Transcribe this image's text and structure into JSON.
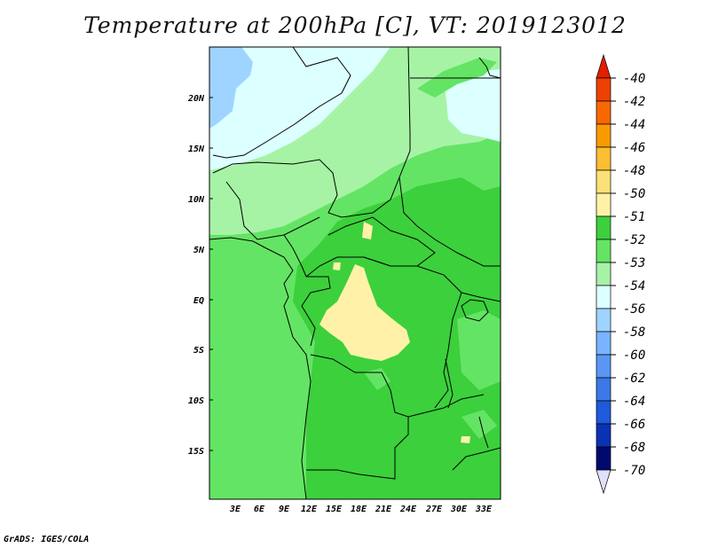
{
  "title": "Temperature at 200hPa [C], VT: 2019123012",
  "credit": "GrADS: IGES/COLA",
  "map": {
    "lat_labels": [
      "20N",
      "15N",
      "10N",
      "5N",
      "EQ",
      "5S",
      "10S",
      "15S"
    ],
    "lon_labels": [
      "3E",
      "6E",
      "9E",
      "12E",
      "15E",
      "18E",
      "21E",
      "24E",
      "27E",
      "30E",
      "33E"
    ],
    "colors": {
      "c52": "#3cd03c",
      "c53": "#64e464",
      "c54": "#a6f3a6",
      "c56": "#dcffff",
      "c58": "#9ed4ff",
      "c51": "#fff2a8",
      "boundary": "#000000"
    }
  },
  "colorbar": {
    "labels": [
      "-40",
      "-42",
      "-44",
      "-46",
      "-48",
      "-50",
      "-51",
      "-52",
      "-53",
      "-54",
      "-56",
      "-58",
      "-60",
      "-62",
      "-64",
      "-66",
      "-68",
      "-70"
    ],
    "colors": [
      "#e41e00",
      "#ee4000",
      "#f86800",
      "#fa9a00",
      "#fcbe32",
      "#fce078",
      "#fff2a8",
      "#3cd03c",
      "#64e464",
      "#a6f3a6",
      "#dcffff",
      "#9ed4ff",
      "#78b4ff",
      "#5a96f4",
      "#3c78e6",
      "#1e5adc",
      "#0a32b4",
      "#000a6e",
      "#e0e0fa"
    ]
  }
}
